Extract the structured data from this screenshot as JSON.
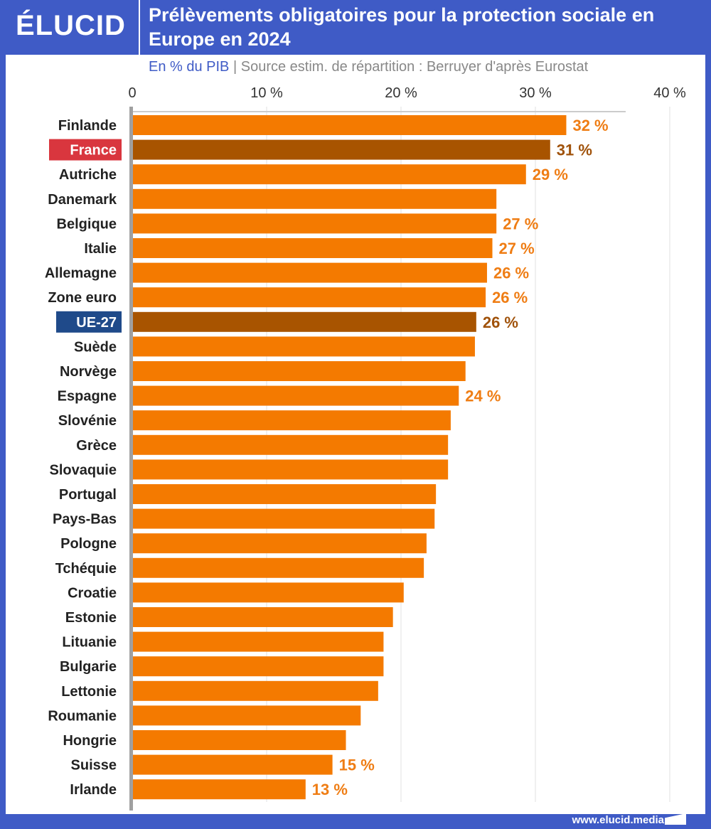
{
  "header": {
    "logo": "ÉLUCID",
    "title": "Prélèvements obligatoires pour la protection sociale en Europe en 2024",
    "unit": "En % du PIB",
    "separator": "|",
    "source": "Source estim. de répartition : Berruyer d'après Eurostat"
  },
  "footer": {
    "url": "www.elucid.media"
  },
  "chart_data": {
    "type": "bar",
    "orientation": "horizontal",
    "title": "Prélèvements obligatoires pour la protection sociale en Europe en 2024",
    "xlabel": "En % du PIB",
    "xlim": [
      0,
      40
    ],
    "ticks": [
      {
        "v": 0,
        "label": "0"
      },
      {
        "v": 10,
        "label": "10 %"
      },
      {
        "v": 20,
        "label": "20 %"
      },
      {
        "v": 30,
        "label": "30 %"
      },
      {
        "v": 40,
        "label": "40 %"
      }
    ],
    "grid": true,
    "colors": {
      "bar": "#f47a00",
      "highlight": "#a85400",
      "label": "#ef7d14",
      "highlight_label": "#a0520a",
      "france_badge": "#d9363e",
      "eu_badge": "#1f4a8a"
    },
    "categories": [
      "Finlande",
      "France",
      "Autriche",
      "Danemark",
      "Belgique",
      "Italie",
      "Allemagne",
      "Zone euro",
      "UE-27",
      "Suède",
      "Norvège",
      "Espagne",
      "Slovénie",
      "Grèce",
      "Slovaquie",
      "Portugal",
      "Pays-Bas",
      "Pologne",
      "Tchéquie",
      "Croatie",
      "Estonie",
      "Lituanie",
      "Bulgarie",
      "Lettonie",
      "Roumanie",
      "Hongrie",
      "Suisse",
      "Irlande"
    ],
    "values": [
      32.3,
      31.1,
      29.3,
      27.1,
      27.1,
      26.8,
      26.4,
      26.3,
      25.6,
      25.5,
      24.8,
      24.3,
      23.7,
      23.5,
      23.5,
      22.6,
      22.5,
      21.9,
      21.7,
      20.2,
      19.4,
      18.7,
      18.7,
      18.3,
      17.0,
      15.9,
      14.9,
      12.9
    ],
    "data_labels": [
      "32 %",
      "31 %",
      "29 %",
      "",
      "27 %",
      "27 %",
      "26 %",
      "26 %",
      "26 %",
      "",
      "",
      "24 %",
      "",
      "",
      "",
      "",
      "",
      "",
      "",
      "",
      "",
      "",
      "",
      "",
      "",
      "",
      "15 %",
      "13 %"
    ],
    "highlighted": [
      "France",
      "UE-27"
    ]
  }
}
